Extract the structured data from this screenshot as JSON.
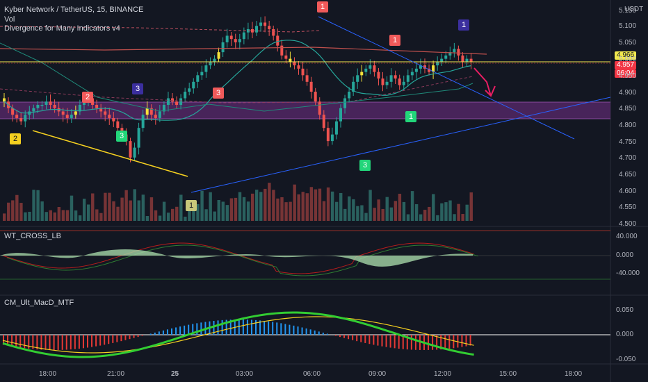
{
  "header": {
    "title": "Kyber Network / TetherUS, 15, BINANCE",
    "vol_label": "Vol",
    "indicator_label": "Divergence for Many Indicators v4"
  },
  "price_axis": {
    "unit": "USDT",
    "ticks": [
      "5.150",
      "5.100",
      "5.050",
      "5.000",
      "4.950",
      "4.900",
      "4.850",
      "4.800",
      "4.750",
      "4.700",
      "4.650",
      "4.600",
      "4.550",
      "4.500"
    ],
    "tag_upper": "4.966",
    "tag_lower": "4.957",
    "countdown": "06:04"
  },
  "pane2": {
    "label": "WT_CROSS_LB",
    "ticks": [
      "40.000",
      "0.000",
      "-40.000"
    ]
  },
  "pane3": {
    "label": "CM_Ult_MacD_MTF",
    "ticks": [
      "0.050",
      "0.000",
      "-0.050"
    ]
  },
  "time_axis": {
    "ticks": [
      "18:00",
      "21:00",
      "25",
      "03:00",
      "06:00",
      "09:00",
      "12:00",
      "15:00",
      "18:00"
    ]
  },
  "markers": [
    {
      "text": "2",
      "kind": "bull",
      "color": "#f5d020"
    },
    {
      "text": "3",
      "kind": "bull",
      "color": "#22d67a"
    },
    {
      "text": "2",
      "kind": "bear",
      "color": "#f05a5a"
    },
    {
      "text": "3",
      "kind": "bear",
      "color": "#3b2f9e"
    },
    {
      "text": "3",
      "kind": "bear",
      "color": "#f05a5a"
    },
    {
      "text": "1",
      "kind": "bull",
      "color": "#c8c77a"
    },
    {
      "text": "1",
      "kind": "bear",
      "color": "#f05a5a"
    },
    {
      "text": "3",
      "kind": "bull",
      "color": "#22d67a"
    },
    {
      "text": "1",
      "kind": "bear",
      "color": "#f05a5a"
    },
    {
      "text": "1",
      "kind": "bull",
      "color": "#22d67a"
    },
    {
      "text": "1",
      "kind": "bear",
      "color": "#3b2f9e"
    }
  ],
  "colors": {
    "background": "#131722",
    "up": "#26a69a",
    "down": "#ef5350",
    "zone": "#5b2a6e",
    "price_line": "#f2e94e",
    "last_price_tag": "#f23645"
  }
}
